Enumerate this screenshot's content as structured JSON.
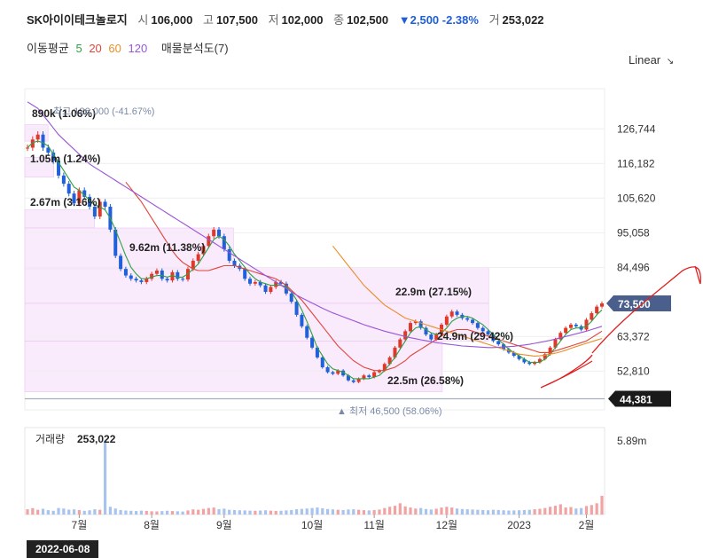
{
  "header": {
    "name": "SK아이이테크놀로지",
    "open_label": "시",
    "open": "106,000",
    "high_label": "고",
    "high": "107,500",
    "low_label": "저",
    "low": "102,000",
    "close_label": "종",
    "close": "102,500",
    "change": "▼2,500 -2.38%",
    "vol_label": "거",
    "volume": "253,022"
  },
  "ma_legend": {
    "label": "이동평균",
    "periods": [
      {
        "text": "5",
        "color": "#2ea043"
      },
      {
        "text": "20",
        "color": "#e0453a"
      },
      {
        "text": "60",
        "color": "#e8902a"
      },
      {
        "text": "120",
        "color": "#9a55d8"
      }
    ],
    "supply_label": "매물분석도(7)"
  },
  "scale_label": "Linear",
  "date_label": "2022-06-08",
  "chart_data": {
    "type": "candlestick",
    "y_ticks": [
      "126,744",
      "116,182",
      "105,620",
      "95,058",
      "84,496",
      "63,372",
      "52,810"
    ],
    "y_tick_values": [
      126744,
      116182,
      105620,
      95058,
      84496,
      63372,
      52810
    ],
    "ylim": [
      41000,
      139000
    ],
    "x_ticks": [
      "7월",
      "8월",
      "9월",
      "10월",
      "11월",
      "12월",
      "2023",
      "2월"
    ],
    "current_price_label": "73,500",
    "current_price": 73500,
    "low_line_label": "44,381",
    "low_line": 44381,
    "max_annotation": "최고 126,000 (-41.67%)",
    "min_annotation": "▲ 최저 46,500 (58.06%)",
    "supply_zones": [
      {
        "label": "890k (1.06%)",
        "from": 123000,
        "to": 128000,
        "width": 0.04
      },
      {
        "label": "1.05m (1.24%)",
        "from": 112000,
        "to": 118000,
        "width": 0.05
      },
      {
        "label": "2.67m (3.16%)",
        "from": 96500,
        "to": 102000,
        "width": 0.12
      },
      {
        "label": "9.62m (11.38%)",
        "from": 84000,
        "to": 96500,
        "width": 0.36
      },
      {
        "label": "22.9m (27.15%)",
        "from": 73500,
        "to": 84500,
        "width": 1.0
      },
      {
        "label": "24.9m (29.42%)",
        "from": 62000,
        "to": 73500,
        "width": 1.0
      },
      {
        "label": "22.5m (26.58%)",
        "from": 46500,
        "to": 62000,
        "width": 0.9
      }
    ],
    "volume_label": "거래량",
    "volume_value": "253,022",
    "volume_tick": "5.89m",
    "volume_tick_value": 5890000,
    "series": [
      {
        "name": "close",
        "values": [
          121000,
          123500,
          125000,
          121000,
          119500,
          117000,
          112500,
          110000,
          107000,
          104000,
          108000,
          106000,
          103000,
          100000,
          104500,
          103000,
          96000,
          88000,
          84000,
          82000,
          81000,
          80500,
          80000,
          81000,
          82500,
          83500,
          81000,
          80500,
          83000,
          81000,
          80800,
          84000,
          86500,
          88500,
          91000,
          94000,
          96000,
          94000,
          90000,
          86500,
          85000,
          84000,
          81000,
          79500,
          80000,
          79000,
          77000,
          78500,
          80000,
          79500,
          76500,
          74000,
          70000,
          66500,
          63000,
          60000,
          57000,
          54000,
          52500,
          52000,
          53000,
          51500,
          50000,
          49500,
          50500,
          51500,
          51000,
          52500,
          53000,
          55000,
          57000,
          60000,
          62500,
          65000,
          67500,
          68000,
          66000,
          64000,
          62500,
          64000,
          67000,
          69500,
          71000,
          70000,
          69000,
          68500,
          67500,
          66000,
          65000,
          64000,
          62000,
          61000,
          59500,
          58500,
          57500,
          56500,
          55500,
          55000,
          55500,
          56500,
          58000,
          60000,
          62500,
          64500,
          66000,
          67000,
          66500,
          65500,
          68500,
          70500,
          72500,
          73500
        ]
      }
    ],
    "ma_series": [
      {
        "period": 5,
        "values": [
          121000,
          122500,
          123000,
          122500,
          121500,
          119000,
          116500,
          114000,
          111500,
          109000,
          108000,
          106500,
          105000,
          103500,
          103000,
          102000,
          99500,
          96000,
          92000,
          88000,
          84500,
          82500,
          81000,
          81000,
          81500,
          82000,
          82000,
          81500,
          82000,
          81500,
          81500,
          82500,
          84000,
          85500,
          88000,
          90500,
          93000,
          94000,
          93000,
          91000,
          88500,
          86500,
          84500,
          82500,
          81000,
          80000,
          79500,
          79000,
          79000,
          79000,
          78500,
          77000,
          74500,
          71500,
          68000,
          64000,
          60000,
          57500,
          55000,
          53500,
          53000,
          52500,
          51500,
          50500,
          50500,
          50500,
          50500,
          51000,
          51500,
          53000,
          55000,
          57000,
          59500,
          62000,
          64500,
          66000,
          66500,
          65500,
          64500,
          64000,
          64500,
          66000,
          68000,
          69000,
          69500,
          69500,
          69000,
          68000,
          67000,
          65500,
          64000,
          62500,
          61000,
          59500,
          58500,
          57500,
          56500,
          55500,
          55500,
          55500,
          56500,
          58000,
          60000,
          62000,
          64000,
          65500,
          66000,
          66000,
          66500,
          68000,
          70000,
          71500
        ]
      },
      {
        "period": 20,
        "values": [
          null,
          null,
          null,
          null,
          null,
          null,
          null,
          null,
          null,
          null,
          null,
          null,
          null,
          null,
          null,
          null,
          null,
          null,
          null,
          110500,
          108500,
          106500,
          104500,
          102000,
          99500,
          97000,
          94500,
          92000,
          89500,
          87500,
          86000,
          85000,
          84000,
          83500,
          83500,
          83500,
          84000,
          84500,
          85000,
          85000,
          85000,
          84500,
          84000,
          83500,
          83000,
          82500,
          82000,
          81500,
          81000,
          80000,
          79000,
          77500,
          76000,
          74500,
          72500,
          70500,
          68500,
          66500,
          64500,
          62500,
          60500,
          59000,
          57500,
          56000,
          55000,
          54000,
          53500,
          53000,
          53000,
          53000,
          53500,
          54000,
          55000,
          56000,
          57500,
          58500,
          59500,
          60500,
          61500,
          62500,
          63500,
          64500,
          65000,
          65500,
          65500,
          65500,
          65000,
          64500,
          64000,
          63500,
          63000,
          62500,
          62000,
          61500,
          61000,
          60500,
          60000,
          59500,
          59000,
          58500,
          58500,
          58500,
          59000,
          59500,
          60000,
          60500,
          61000,
          61500,
          62000,
          63000,
          64000,
          65000
        ]
      },
      {
        "period": 60,
        "values": [
          null,
          null,
          null,
          null,
          null,
          null,
          null,
          null,
          null,
          null,
          null,
          null,
          null,
          null,
          null,
          null,
          null,
          null,
          null,
          null,
          null,
          null,
          null,
          null,
          null,
          null,
          null,
          null,
          null,
          null,
          null,
          null,
          null,
          null,
          null,
          null,
          null,
          null,
          null,
          null,
          null,
          null,
          null,
          null,
          null,
          null,
          null,
          null,
          null,
          null,
          null,
          null,
          null,
          null,
          null,
          null,
          null,
          null,
          null,
          91000,
          89000,
          87000,
          85000,
          83000,
          81000,
          79000,
          77500,
          76000,
          74500,
          73000,
          72000,
          71000,
          70000,
          69000,
          68500,
          68000,
          67500,
          67000,
          66500,
          66000,
          65500,
          65000,
          64500,
          64000,
          63500,
          63000,
          62500,
          62000,
          61500,
          61000,
          60500,
          60000,
          59500,
          59000,
          58500,
          58000,
          57800,
          57600,
          57400,
          57500,
          57700,
          58000,
          58300,
          58700,
          59200,
          59800,
          60300,
          60800,
          61300,
          61800,
          62300,
          62800
        ]
      },
      {
        "period": 120,
        "values": [
          135000,
          134000,
          133000,
          131000,
          129000,
          127000,
          125000,
          123500,
          122000,
          120500,
          119000,
          117500,
          116000,
          115000,
          114000,
          113000,
          112000,
          111000,
          110000,
          109000,
          108000,
          107000,
          106000,
          105000,
          104000,
          103000,
          102000,
          101000,
          100000,
          99000,
          98000,
          97000,
          96000,
          95000,
          94000,
          93000,
          92000,
          91000,
          90000,
          89000,
          88000,
          87000,
          86000,
          85000,
          84000,
          83000,
          82000,
          81000,
          80000,
          79000,
          78000,
          77000,
          76000,
          75200,
          74400,
          73600,
          72800,
          72000,
          71300,
          70600,
          70000,
          69400,
          68800,
          68200,
          67600,
          67000,
          66500,
          66000,
          65500,
          65000,
          64600,
          64200,
          63800,
          63400,
          63000,
          62700,
          62400,
          62100,
          61800,
          61500,
          61300,
          61100,
          60900,
          60700,
          60500,
          60400,
          60300,
          60200,
          60100,
          60000,
          60000,
          60100,
          60200,
          60300,
          60400,
          60600,
          60800,
          61000,
          61300,
          61600,
          61900,
          62200,
          62600,
          63000,
          63400,
          63800,
          64200,
          64600,
          65000,
          65500,
          66000,
          66500
        ]
      }
    ],
    "volumes": [
      420000,
      510000,
      380000,
      460000,
      350000,
      300000,
      520000,
      480000,
      390000,
      410000,
      360000,
      300000,
      340000,
      420000,
      380000,
      5890000,
      620000,
      480000,
      360000,
      320000,
      300000,
      280000,
      310000,
      290000,
      260000,
      250000,
      270000,
      300000,
      280000,
      260000,
      240000,
      330000,
      410000,
      380000,
      450000,
      520000,
      560000,
      430000,
      470000,
      380000,
      360000,
      340000,
      330000,
      310000,
      300000,
      320000,
      340000,
      310000,
      290000,
      300000,
      330000,
      360000,
      420000,
      450000,
      480000,
      520000,
      560000,
      500000,
      440000,
      410000,
      380000,
      360000,
      400000,
      420000,
      380000,
      350000,
      330000,
      360000,
      400000,
      520000,
      620000,
      700000,
      900000,
      650000,
      560000,
      480000,
      520000,
      440000,
      400000,
      460000,
      560000,
      620000,
      560000,
      480000,
      440000,
      420000,
      400000,
      380000,
      360000,
      340000,
      380000,
      360000,
      340000,
      320000,
      330000,
      340000,
      360000,
      380000,
      420000,
      460000,
      520000,
      620000,
      700000,
      820000,
      560000,
      600000,
      480000,
      520000,
      680000,
      760000,
      900000,
      1500000
    ]
  }
}
